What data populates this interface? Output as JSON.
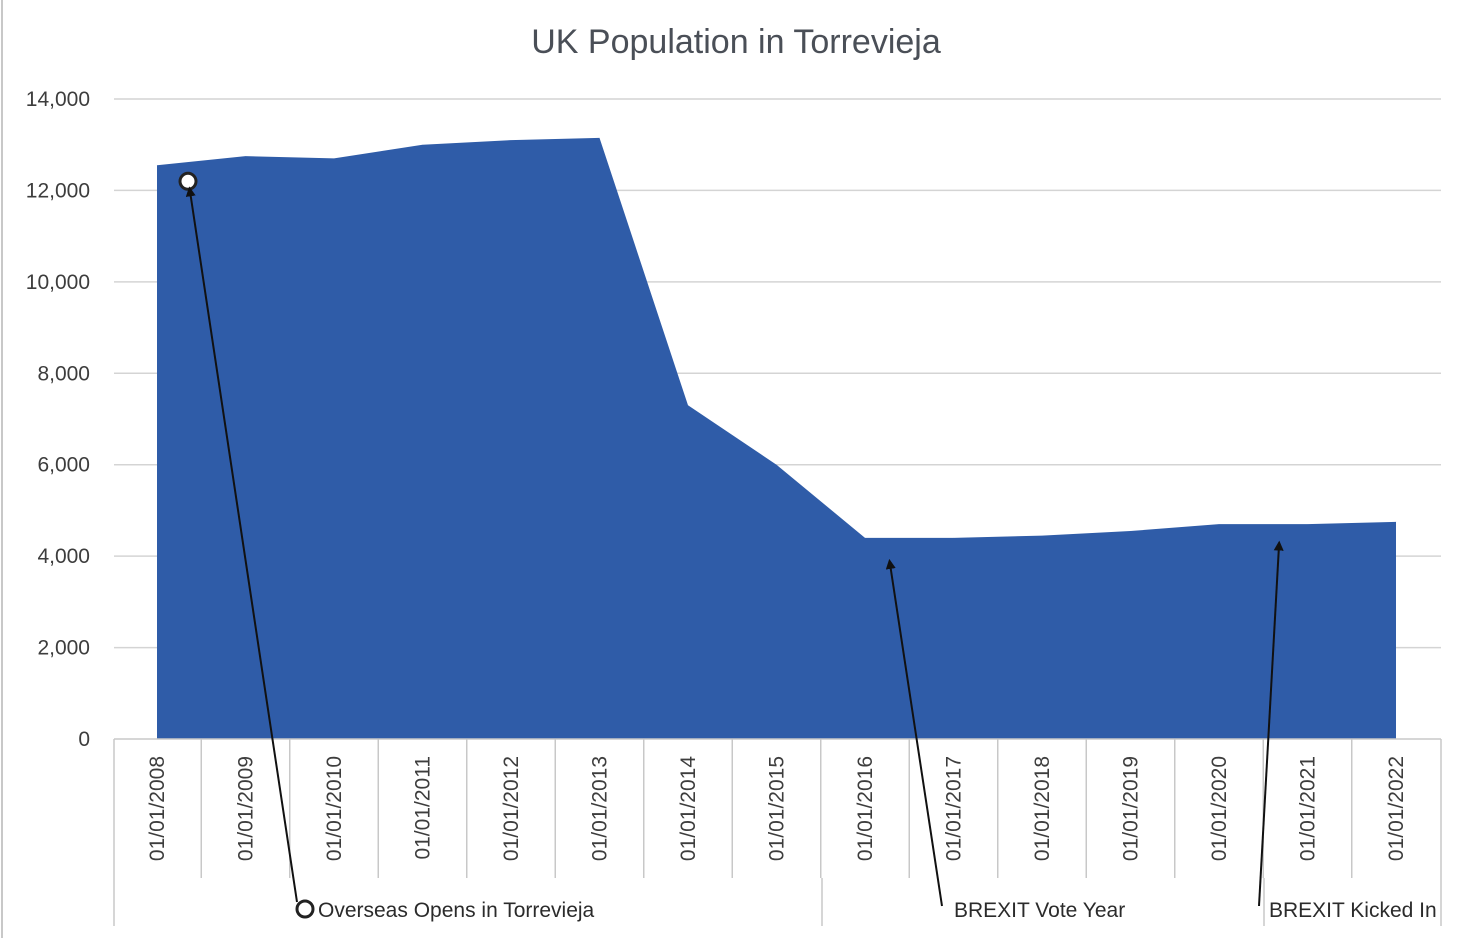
{
  "chart_data": {
    "type": "area",
    "title": "UK Population in Torrevieja",
    "xlabel": "",
    "ylabel": "",
    "ylim": [
      0,
      14000
    ],
    "yticks": [
      0,
      2000,
      4000,
      6000,
      8000,
      10000,
      12000,
      14000
    ],
    "ytick_labels": [
      "0",
      "2,000",
      "4,000",
      "6,000",
      "8,000",
      "10,000",
      "12,000",
      "14,000"
    ],
    "grid": true,
    "legend": "none",
    "color": "#2f5ca8",
    "categories": [
      "01/01/2008",
      "01/01/2009",
      "01/01/2010",
      "01/01/2011",
      "01/01/2012",
      "01/01/2013",
      "01/01/2014",
      "01/01/2015",
      "01/01/2016",
      "01/01/2017",
      "01/01/2018",
      "01/01/2019",
      "01/01/2020",
      "01/01/2021",
      "01/01/2022"
    ],
    "values": [
      12550,
      12750,
      12700,
      13000,
      13100,
      13150,
      7300,
      6000,
      4400,
      4400,
      4450,
      4550,
      4700,
      4700,
      4750
    ],
    "annotations": [
      {
        "text": "Overseas Opens in Torrevieja",
        "points_to": "01/01/2008",
        "value": 12200
      },
      {
        "text": "BREXIT Vote Year",
        "points_to": "01/01/2016",
        "value": 4050
      },
      {
        "text": "BREXIT Kicked In",
        "points_to": "01/01/2020",
        "value": 4450
      }
    ]
  }
}
